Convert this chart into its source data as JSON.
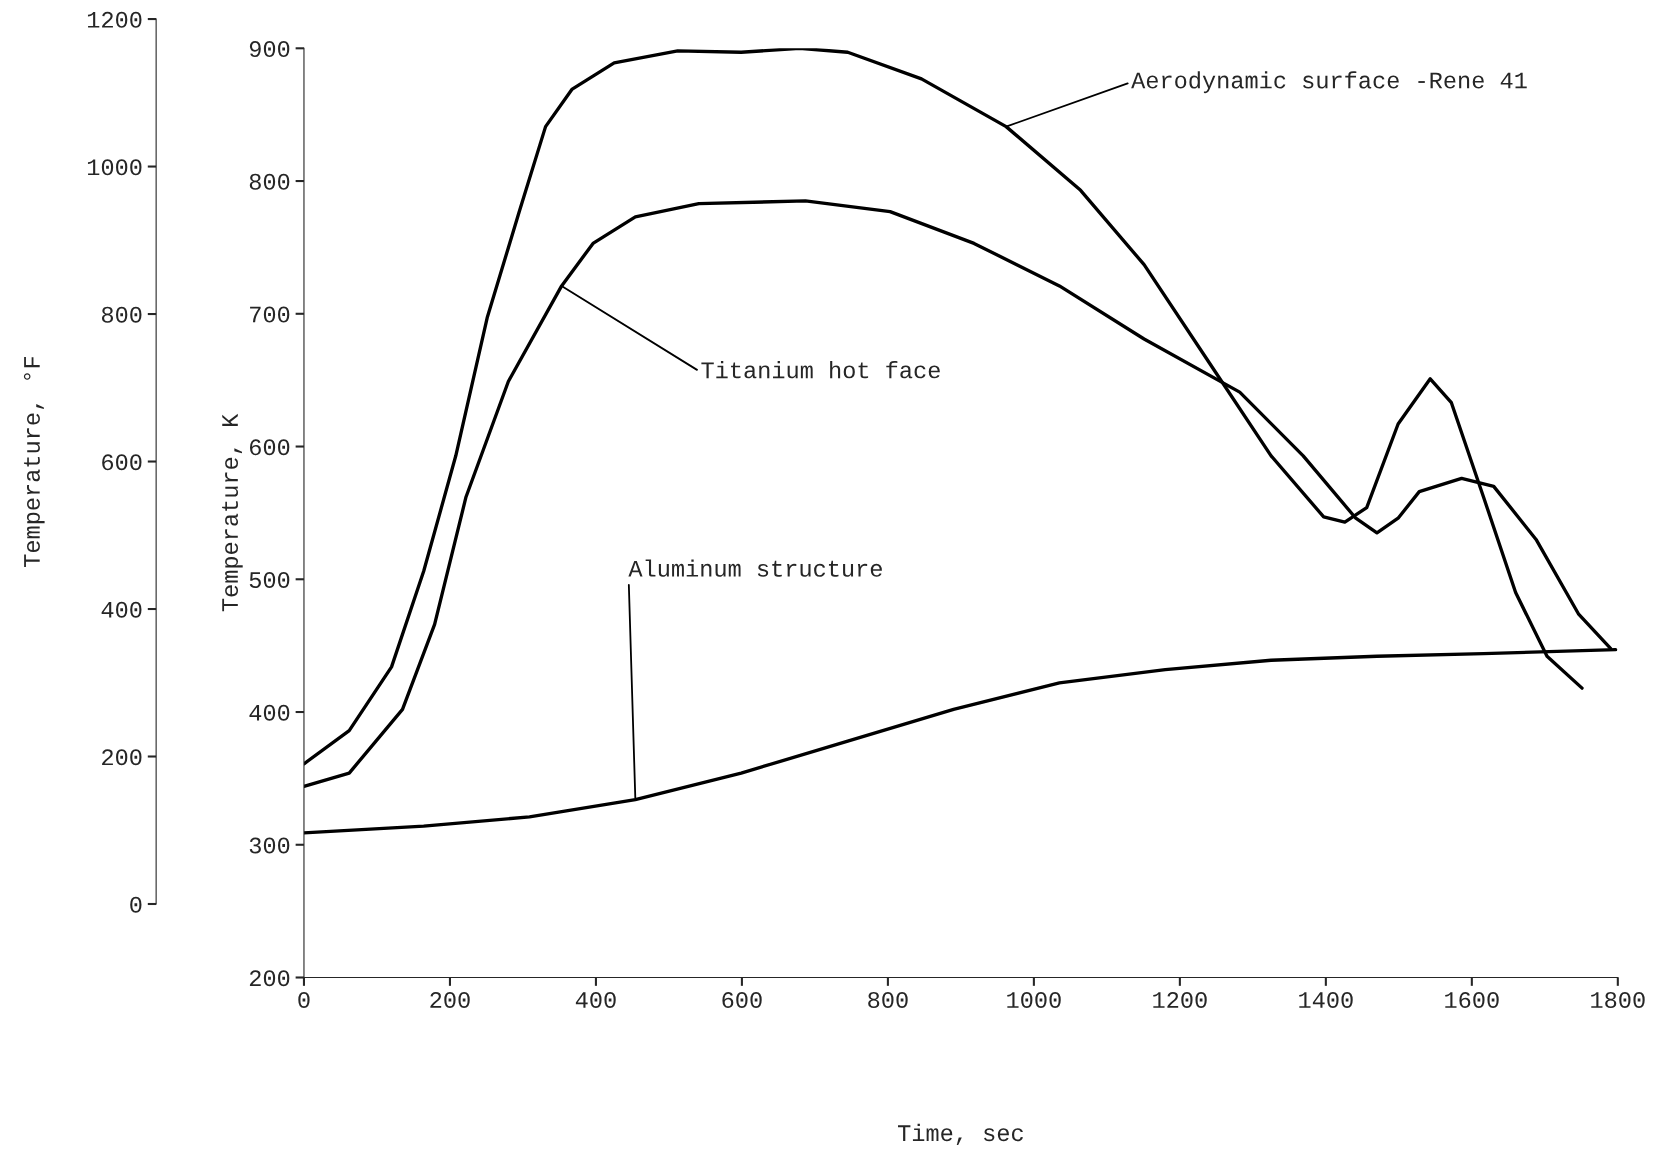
{
  "chart_data": {
    "type": "line",
    "xlabel": "Time, sec",
    "ylabel": "Temperature, K",
    "y2label": "Temperature, °F",
    "xlim": [
      0,
      1800
    ],
    "xticks": [
      0,
      200,
      400,
      600,
      800,
      1000,
      1200,
      1400,
      1600,
      1800
    ],
    "ylim": [
      200,
      900
    ],
    "yticks": [
      200,
      300,
      400,
      500,
      600,
      700,
      800,
      900
    ],
    "y2lim": [
      0,
      1200
    ],
    "y2ticks": [
      0,
      200,
      400,
      600,
      800,
      1000,
      1200
    ],
    "grid": false,
    "marker": "none",
    "line_style": "solid",
    "series": [
      {
        "color": "#000000",
        "x": [
          0,
          62,
          120,
          164,
          208,
          251,
          295,
          331,
          367,
          425,
          512,
          599,
          679,
          745,
          846,
          962,
          1064,
          1151,
          1238,
          1325,
          1397,
          1426,
          1456,
          1499,
          1543,
          1572,
          1616,
          1660,
          1703,
          1751
        ],
        "values": [
          361,
          386,
          434,
          506,
          593,
          697,
          777,
          841,
          869,
          889,
          898,
          897,
          900,
          897,
          877,
          841,
          793,
          737,
          665,
          593,
          547,
          543,
          554,
          617,
          651,
          633,
          562,
          490,
          442,
          418
        ]
      },
      {
        "color": "#000000",
        "x": [
          0,
          62,
          135,
          179,
          222,
          280,
          353,
          396,
          454,
          541,
          687,
          803,
          918,
          1035,
          1151,
          1282,
          1369,
          1441,
          1470,
          1499,
          1528,
          1586,
          1630,
          1688,
          1746,
          1790
        ],
        "values": [
          344,
          354,
          402,
          466,
          562,
          649,
          721,
          753,
          773,
          783,
          785,
          777,
          753,
          721,
          681,
          641,
          593,
          546,
          535,
          546,
          566,
          576,
          570,
          530,
          474,
          448
        ]
      },
      {
        "color": "#000000",
        "x": [
          0,
          164,
          309,
          454,
          599,
          745,
          890,
          1035,
          1180,
          1325,
          1470,
          1616,
          1797
        ],
        "values": [
          309,
          314,
          321,
          334,
          354,
          378,
          402,
          422,
          432,
          439,
          442,
          444,
          447
        ]
      }
    ],
    "annotations": [
      {
        "text": "Aerodynamic surface -Rene 41",
        "x": 962,
        "y": 841
      },
      {
        "text": "Titanium hot face",
        "x": 353,
        "y": 721
      },
      {
        "text": "Aluminum structure",
        "x": 454,
        "y": 334
      }
    ]
  }
}
